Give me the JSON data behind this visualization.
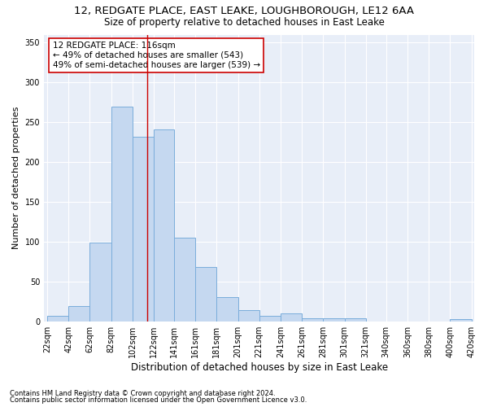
{
  "title1": "12, REDGATE PLACE, EAST LEAKE, LOUGHBOROUGH, LE12 6AA",
  "title2": "Size of property relative to detached houses in East Leake",
  "xlabel": "Distribution of detached houses by size in East Leake",
  "ylabel": "Number of detached properties",
  "footnote1": "Contains HM Land Registry data © Crown copyright and database right 2024.",
  "footnote2": "Contains public sector information licensed under the Open Government Licence v3.0.",
  "annotation_line1": "12 REDGATE PLACE: 116sqm",
  "annotation_line2": "← 49% of detached houses are smaller (543)",
  "annotation_line3": "49% of semi-detached houses are larger (539) →",
  "bar_edges": [
    22,
    42,
    62,
    82,
    102,
    122,
    141,
    161,
    181,
    201,
    221,
    241,
    261,
    281,
    301,
    321,
    340,
    360,
    380,
    400,
    420
  ],
  "bar_heights": [
    7,
    19,
    99,
    270,
    232,
    241,
    105,
    68,
    30,
    14,
    7,
    10,
    4,
    4,
    4,
    0,
    0,
    0,
    0,
    3
  ],
  "bar_color": "#c5d8f0",
  "bar_edge_color": "#7aaddb",
  "vline_color": "#cc0000",
  "vline_x": 116,
  "ylim": [
    0,
    360
  ],
  "yticks": [
    0,
    50,
    100,
    150,
    200,
    250,
    300,
    350
  ],
  "plot_bg_color": "#e8eef8",
  "fig_bg_color": "#ffffff",
  "grid_color": "#ffffff",
  "annotation_box_color": "#ffffff",
  "annotation_box_edge": "#cc0000",
  "title1_fontsize": 9.5,
  "title2_fontsize": 8.5,
  "xlabel_fontsize": 8.5,
  "ylabel_fontsize": 8,
  "tick_fontsize": 7,
  "footnote_fontsize": 6,
  "annotation_fontsize": 7.5
}
